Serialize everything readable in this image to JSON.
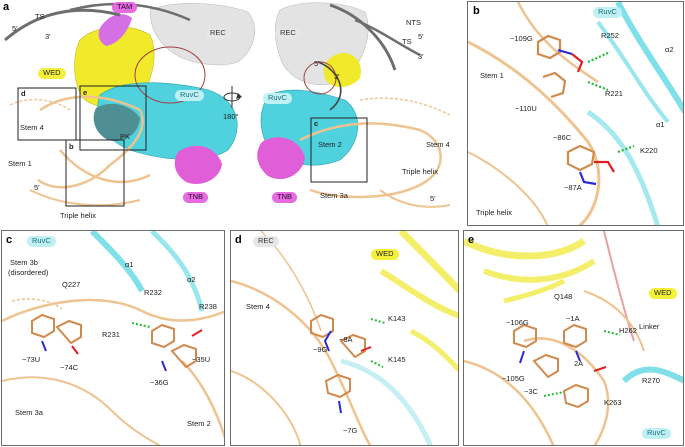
{
  "colors": {
    "ruvc": "#4fd2de",
    "wed": "#f0ea2a",
    "rec": "#e3e3e3",
    "tam": "#d470e3",
    "tnb": "#e05fd8",
    "rna": "#eec38f",
    "dna": "#6e6e6e"
  },
  "panel_a": {
    "label": "a",
    "rotation": "180°",
    "left": {
      "ts": "TS",
      "five_prime_top": "5′",
      "three_prime_top": "3′",
      "tam": "TAM",
      "rec": "REC",
      "wed": "WED",
      "ruvc": "RuvC",
      "pk": "PK",
      "stem4": "Stem 4",
      "stem1": "Stem 1",
      "five_prime": "5′",
      "triple_helix": "Triple helix",
      "tnb": "TNB",
      "box_d": "d",
      "box_e": "e",
      "box_b": "b"
    },
    "right": {
      "rec": "REC",
      "nts": "NTS",
      "ts": "TS",
      "five_prime_top": "5′",
      "three_prime_top": "3′",
      "five_prime_mid": "5′",
      "three_prime_mid": "3′",
      "ruvc": "RuvC",
      "stem2": "Stem 2",
      "stem4": "Stem 4",
      "triple_helix": "Triple helix",
      "five_prime": "5′",
      "stem3a": "Stem 3a",
      "tnb": "TNB",
      "box_c": "c"
    }
  },
  "panel_b": {
    "label": "b",
    "ruvc": "RuvC",
    "labels": [
      "−109G",
      "R252",
      "α2",
      "Stem 1",
      "−110U",
      "R221",
      "α1",
      "−86C",
      "K220",
      "−87A",
      "Triple helix"
    ]
  },
  "panel_c": {
    "label": "c",
    "ruvc": "RuvC",
    "labels": [
      "Stem 3b",
      "(disordered)",
      "α1",
      "α2",
      "Q227",
      "R232",
      "R238",
      "R231",
      "−73U",
      "−74C",
      "−35U",
      "−36G",
      "Stem 3a",
      "Stem 2"
    ]
  },
  "panel_d": {
    "label": "d",
    "rec": "REC",
    "wed": "WED",
    "labels": [
      "Stem 4",
      "K143",
      "−9G",
      "−8A",
      "K145",
      "−7G"
    ]
  },
  "panel_e": {
    "label": "e",
    "wed": "WED",
    "ruvc": "RuvC",
    "labels": [
      "Q148",
      "Linker",
      "−106G",
      "−1A",
      "H262",
      "2A",
      "−105G",
      "R270",
      "−3C",
      "K263"
    ]
  }
}
